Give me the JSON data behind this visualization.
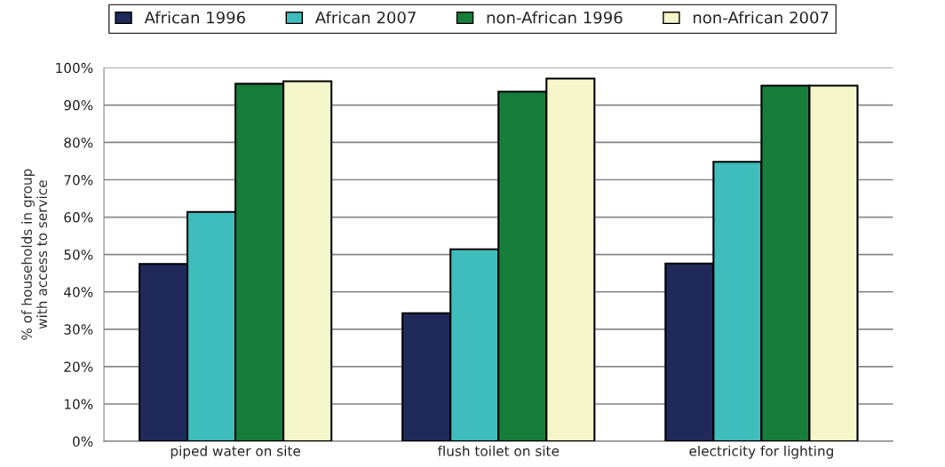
{
  "chart_data": {
    "type": "bar",
    "ylabel": "% of households in group\nwith access to service",
    "categories": [
      "piped water on site",
      "flush toilet on site",
      "electricity for lighting"
    ],
    "series": [
      {
        "name": "African 1996",
        "color": "#1f2a5a",
        "values": [
          47.5,
          34.3,
          47.6
        ]
      },
      {
        "name": "African 2007",
        "color": "#3fbcbc",
        "values": [
          61.4,
          51.4,
          74.8
        ]
      },
      {
        "name": "non-African 1996",
        "color": "#177d3a",
        "values": [
          95.7,
          93.6,
          95.2
        ]
      },
      {
        "name": "non-African 2007",
        "color": "#f5f6c9",
        "values": [
          96.4,
          97.1,
          95.2
        ]
      }
    ],
    "ylim": [
      0,
      100
    ],
    "yticks": [
      {
        "value": 0,
        "label": "0%"
      },
      {
        "value": 10,
        "label": "10%"
      },
      {
        "value": 20,
        "label": "20%"
      },
      {
        "value": 30,
        "label": "30%"
      },
      {
        "value": 40,
        "label": "40%"
      },
      {
        "value": 50,
        "label": "50%"
      },
      {
        "value": 60,
        "label": "60%"
      },
      {
        "value": 70,
        "label": "70%"
      },
      {
        "value": 80,
        "label": "80%"
      },
      {
        "value": 90,
        "label": "90%"
      },
      {
        "value": 100,
        "label": "100%"
      }
    ],
    "grid": "y",
    "legend": "top"
  }
}
